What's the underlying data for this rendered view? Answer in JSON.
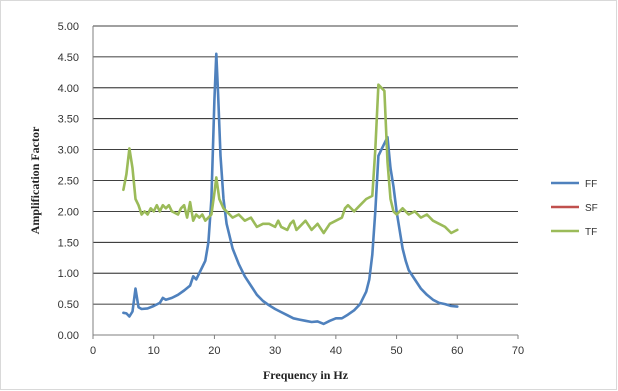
{
  "chart_data": {
    "type": "line",
    "xlabel": "Frequency in Hz",
    "ylabel": "Amplification Factor",
    "xlim": [
      0,
      70
    ],
    "ylim": [
      0,
      5
    ],
    "xticks": [
      "0",
      "10",
      "20",
      "30",
      "40",
      "50",
      "60",
      "70"
    ],
    "yticks": [
      "0.00",
      "0.50",
      "1.00",
      "1.50",
      "2.00",
      "2.50",
      "3.00",
      "3.50",
      "4.00",
      "4.50",
      "5.00"
    ],
    "grid": "horizontal",
    "legend_position": "right",
    "series": [
      {
        "name": "FF",
        "color": "#4f81bd",
        "points": [
          [
            5,
            0.36
          ],
          [
            5.5,
            0.35
          ],
          [
            6,
            0.3
          ],
          [
            6.5,
            0.38
          ],
          [
            7,
            0.75
          ],
          [
            7.5,
            0.45
          ],
          [
            8,
            0.42
          ],
          [
            9,
            0.43
          ],
          [
            10,
            0.47
          ],
          [
            11,
            0.52
          ],
          [
            11.5,
            0.6
          ],
          [
            12,
            0.57
          ],
          [
            13,
            0.6
          ],
          [
            14,
            0.65
          ],
          [
            15,
            0.72
          ],
          [
            16,
            0.8
          ],
          [
            16.5,
            0.95
          ],
          [
            17,
            0.9
          ],
          [
            18,
            1.1
          ],
          [
            18.5,
            1.2
          ],
          [
            19,
            1.5
          ],
          [
            19.5,
            2.2
          ],
          [
            20,
            3.8
          ],
          [
            20.3,
            4.55
          ],
          [
            20.6,
            3.9
          ],
          [
            21,
            2.9
          ],
          [
            21.5,
            2.2
          ],
          [
            22,
            1.8
          ],
          [
            22.5,
            1.6
          ],
          [
            23,
            1.4
          ],
          [
            24,
            1.15
          ],
          [
            25,
            0.95
          ],
          [
            26,
            0.8
          ],
          [
            27,
            0.65
          ],
          [
            28,
            0.55
          ],
          [
            29,
            0.48
          ],
          [
            30,
            0.42
          ],
          [
            31,
            0.37
          ],
          [
            32,
            0.32
          ],
          [
            33,
            0.27
          ],
          [
            34,
            0.25
          ],
          [
            35,
            0.23
          ],
          [
            36,
            0.21
          ],
          [
            37,
            0.22
          ],
          [
            38,
            0.18
          ],
          [
            39,
            0.23
          ],
          [
            40,
            0.27
          ],
          [
            41,
            0.27
          ],
          [
            42,
            0.33
          ],
          [
            43,
            0.4
          ],
          [
            44,
            0.5
          ],
          [
            45,
            0.7
          ],
          [
            45.5,
            0.9
          ],
          [
            46,
            1.3
          ],
          [
            46.5,
            2.0
          ],
          [
            47,
            2.9
          ],
          [
            47.5,
            3.0
          ],
          [
            48,
            3.1
          ],
          [
            48.5,
            3.2
          ],
          [
            49,
            2.7
          ],
          [
            49.5,
            2.4
          ],
          [
            50,
            2.0
          ],
          [
            50.5,
            1.7
          ],
          [
            51,
            1.4
          ],
          [
            51.5,
            1.2
          ],
          [
            52,
            1.05
          ],
          [
            53,
            0.9
          ],
          [
            54,
            0.75
          ],
          [
            55,
            0.65
          ],
          [
            56,
            0.57
          ],
          [
            57,
            0.52
          ],
          [
            58,
            0.5
          ],
          [
            59,
            0.47
          ],
          [
            60,
            0.46
          ]
        ]
      },
      {
        "name": "SF",
        "color": "#c0504d",
        "points": []
      },
      {
        "name": "TF",
        "color": "#9bbb59",
        "points": [
          [
            5,
            2.35
          ],
          [
            5.5,
            2.6
          ],
          [
            6,
            3.02
          ],
          [
            6.5,
            2.7
          ],
          [
            7,
            2.2
          ],
          [
            7.5,
            2.1
          ],
          [
            8,
            1.95
          ],
          [
            8.5,
            2.0
          ],
          [
            9,
            1.95
          ],
          [
            9.5,
            2.05
          ],
          [
            10,
            2.0
          ],
          [
            10.5,
            2.1
          ],
          [
            11,
            2.0
          ],
          [
            11.5,
            2.1
          ],
          [
            12,
            2.05
          ],
          [
            12.5,
            2.1
          ],
          [
            13,
            2.0
          ],
          [
            14,
            1.95
          ],
          [
            14.5,
            2.05
          ],
          [
            15,
            2.1
          ],
          [
            15.5,
            1.9
          ],
          [
            16,
            2.15
          ],
          [
            16.5,
            1.85
          ],
          [
            17,
            1.95
          ],
          [
            17.5,
            1.9
          ],
          [
            18,
            1.95
          ],
          [
            18.5,
            1.85
          ],
          [
            19,
            1.9
          ],
          [
            19.5,
            1.95
          ],
          [
            20,
            2.3
          ],
          [
            20.3,
            2.55
          ],
          [
            20.8,
            2.2
          ],
          [
            21.5,
            2.05
          ],
          [
            22,
            2.0
          ],
          [
            22.5,
            1.95
          ],
          [
            23,
            1.9
          ],
          [
            24,
            1.95
          ],
          [
            25,
            1.85
          ],
          [
            26,
            1.9
          ],
          [
            27,
            1.75
          ],
          [
            28,
            1.8
          ],
          [
            29,
            1.8
          ],
          [
            30,
            1.75
          ],
          [
            30.5,
            1.85
          ],
          [
            31,
            1.75
          ],
          [
            32,
            1.7
          ],
          [
            32.5,
            1.8
          ],
          [
            33,
            1.85
          ],
          [
            33.5,
            1.7
          ],
          [
            34,
            1.75
          ],
          [
            35,
            1.85
          ],
          [
            36,
            1.7
          ],
          [
            37,
            1.8
          ],
          [
            38,
            1.65
          ],
          [
            39,
            1.8
          ],
          [
            40,
            1.85
          ],
          [
            41,
            1.9
          ],
          [
            41.5,
            2.05
          ],
          [
            42,
            2.1
          ],
          [
            43,
            2.0
          ],
          [
            44,
            2.1
          ],
          [
            45,
            2.2
          ],
          [
            46,
            2.25
          ],
          [
            46.5,
            3.0
          ],
          [
            47,
            4.05
          ],
          [
            48,
            3.95
          ],
          [
            48.5,
            2.8
          ],
          [
            49,
            2.2
          ],
          [
            49.5,
            2.0
          ],
          [
            50,
            1.95
          ],
          [
            51,
            2.05
          ],
          [
            52,
            1.95
          ],
          [
            53,
            2.0
          ],
          [
            54,
            1.9
          ],
          [
            55,
            1.95
          ],
          [
            56,
            1.85
          ],
          [
            57,
            1.8
          ],
          [
            58,
            1.75
          ],
          [
            59,
            1.65
          ],
          [
            60,
            1.7
          ]
        ]
      }
    ]
  }
}
